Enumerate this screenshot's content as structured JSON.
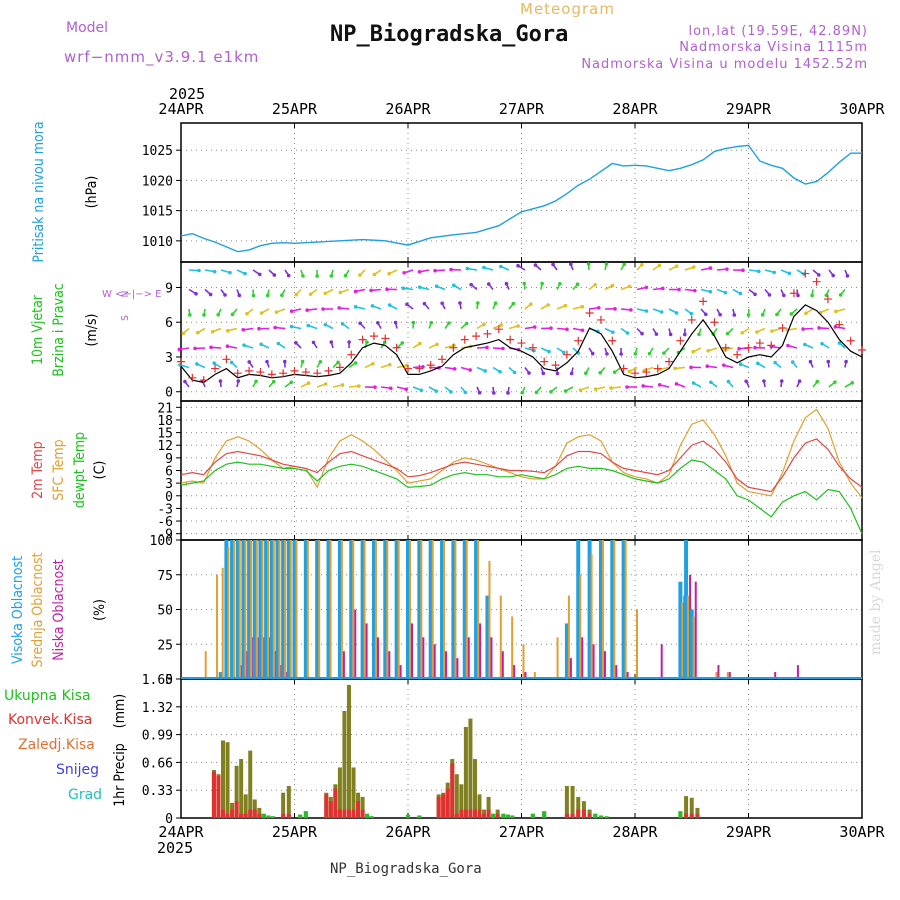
{
  "header": {
    "model_label": "Model",
    "model_name": "wrf−nmm_v3.9.1 e1km",
    "subtitle": "Meteogram",
    "title": "NP_Biogradska_Gora",
    "lonlat": "lon,lat (19.59E, 42.89N)",
    "altitude": "Nadmorska Visina 1115m",
    "altitude_model": "Nadmorska Visina u modelu 1452.52m"
  },
  "footer": {
    "station": "NP_Biogradska_Gora"
  },
  "credit": "made by Angel",
  "colors": {
    "pressure": "#1ea0e0",
    "wind_speed": "#000000",
    "gust": "#e03030",
    "t2m": "#e04848",
    "tsfc": "#e0a030",
    "tdew": "#20c020",
    "cl_high": "#20a0e0",
    "cl_mid": "#e0a030",
    "cl_low": "#c020a0",
    "precip_total": "#20c020",
    "precip_conv": "#e03030",
    "precip_strat": "#808020"
  },
  "chart_data": [
    {
      "type": "line",
      "panel": "pressure",
      "ylabel": [
        "Pritisak na nivou mora",
        "(hPa)"
      ],
      "x_axis": {
        "year": "2025",
        "ticks": [
          "24APR",
          "25APR",
          "26APR",
          "27APR",
          "28APR",
          "29APR",
          "30APR"
        ]
      },
      "ylim": [
        1006.5,
        1029.5
      ],
      "yticks": [
        1010,
        1015,
        1020,
        1025
      ],
      "x": [
        0,
        0.1,
        0.2,
        0.3,
        0.4,
        0.5,
        0.6,
        0.7,
        0.8,
        0.9,
        1.0,
        1.2,
        1.4,
        1.6,
        1.8,
        2.0,
        2.2,
        2.4,
        2.6,
        2.8,
        3.0,
        3.1,
        3.2,
        3.3,
        3.4,
        3.5,
        3.6,
        3.7,
        3.8,
        3.9,
        4.0,
        4.1,
        4.2,
        4.3,
        4.4,
        4.5,
        4.6,
        4.7,
        4.8,
        4.9,
        5.0,
        5.1,
        5.2,
        5.3,
        5.4,
        5.5,
        5.6,
        5.7,
        5.8,
        5.9,
        6.0
      ],
      "series": [
        {
          "values": [
            1010.8,
            1011.2,
            1010.4,
            1009.8,
            1009.0,
            1008.2,
            1008.5,
            1009.2,
            1009.6,
            1009.7,
            1009.6,
            1009.8,
            1010.0,
            1010.2,
            1010.0,
            1009.3,
            1010.5,
            1011.0,
            1011.4,
            1012.5,
            1014.8,
            1015.3,
            1015.8,
            1016.6,
            1017.8,
            1019.2,
            1020.2,
            1021.5,
            1022.8,
            1022.4,
            1022.5,
            1022.4,
            1022.0,
            1021.6,
            1022.0,
            1022.6,
            1023.4,
            1024.8,
            1025.3,
            1025.6,
            1025.8,
            1023.2,
            1022.5,
            1022.0,
            1020.4,
            1019.4,
            1019.8,
            1021.3,
            1023.0,
            1024.5,
            1024.5
          ]
        }
      ]
    },
    {
      "type": "line",
      "panel": "wind",
      "ylabel": [
        "10m Vjetar",
        "Brzina i Pravac",
        "(m/s)"
      ],
      "direction_key": [
        "N",
        "W <−|−> E",
        "S"
      ],
      "ylim": [
        -0.8,
        11.2
      ],
      "yticks": [
        0,
        3,
        6,
        9
      ],
      "x": [
        0,
        0.1,
        0.2,
        0.3,
        0.4,
        0.5,
        0.6,
        0.7,
        0.8,
        0.9,
        1.0,
        1.1,
        1.2,
        1.3,
        1.4,
        1.5,
        1.6,
        1.7,
        1.8,
        1.9,
        2.0,
        2.1,
        2.2,
        2.3,
        2.4,
        2.5,
        2.6,
        2.7,
        2.8,
        2.9,
        3.0,
        3.1,
        3.2,
        3.3,
        3.4,
        3.5,
        3.6,
        3.7,
        3.8,
        3.9,
        4.0,
        4.1,
        4.2,
        4.3,
        4.4,
        4.5,
        4.6,
        4.7,
        4.8,
        4.9,
        5.0,
        5.1,
        5.2,
        5.3,
        5.4,
        5.5,
        5.6,
        5.7,
        5.8,
        5.9,
        6.0
      ],
      "series": [
        {
          "values": [
            2.2,
            1.0,
            0.8,
            1.5,
            2.0,
            1.2,
            1.5,
            1.4,
            1.2,
            1.3,
            1.5,
            1.4,
            1.3,
            1.4,
            1.6,
            2.5,
            3.8,
            4.2,
            4.0,
            3.2,
            1.5,
            1.5,
            1.8,
            2.2,
            3.2,
            3.8,
            4.0,
            4.2,
            4.5,
            3.8,
            3.5,
            3.0,
            2.0,
            1.8,
            2.5,
            3.5,
            5.5,
            5.0,
            3.5,
            1.5,
            1.2,
            1.3,
            1.5,
            2.0,
            3.5,
            5.0,
            6.2,
            4.8,
            3.0,
            2.5,
            3.0,
            3.2,
            3.0,
            4.0,
            6.5,
            7.5,
            7.0,
            6.0,
            4.5,
            3.5,
            3.0
          ]
        },
        {
          "values": [
            2.6,
            1.2,
            1.0,
            2.0,
            2.8,
            1.6,
            1.8,
            1.7,
            1.5,
            1.6,
            1.8,
            1.7,
            1.6,
            1.8,
            2.1,
            3.2,
            4.5,
            4.8,
            4.6,
            3.8,
            2.0,
            2.0,
            2.3,
            2.8,
            3.8,
            4.5,
            4.8,
            5.0,
            5.4,
            4.5,
            4.2,
            3.8,
            2.6,
            2.3,
            3.2,
            4.4,
            6.8,
            6.2,
            4.4,
            2.0,
            1.6,
            1.7,
            2.0,
            2.6,
            4.4,
            6.2,
            7.8,
            6.0,
            3.8,
            3.2,
            3.8,
            4.2,
            4.0,
            5.5,
            8.5,
            10.2,
            9.5,
            8.0,
            5.8,
            4.4,
            3.6
          ]
        }
      ]
    },
    {
      "type": "line",
      "panel": "temperature",
      "ylabel": [
        "2m Temp",
        "SFC Temp",
        "dewpt Temp",
        "(C)"
      ],
      "ylim": [
        -10.5,
        22.5
      ],
      "yticks": [
        -9,
        -6,
        -3,
        0,
        3,
        6,
        9,
        12,
        15,
        18,
        21
      ],
      "x": [
        0,
        0.1,
        0.2,
        0.3,
        0.4,
        0.5,
        0.6,
        0.7,
        0.8,
        0.9,
        1.0,
        1.1,
        1.2,
        1.3,
        1.4,
        1.5,
        1.6,
        1.7,
        1.8,
        1.9,
        2.0,
        2.1,
        2.2,
        2.3,
        2.4,
        2.5,
        2.6,
        2.7,
        2.8,
        2.9,
        3.0,
        3.1,
        3.2,
        3.3,
        3.4,
        3.5,
        3.6,
        3.7,
        3.8,
        3.9,
        4.0,
        4.1,
        4.2,
        4.3,
        4.4,
        4.5,
        4.6,
        4.7,
        4.8,
        4.9,
        5.0,
        5.1,
        5.2,
        5.3,
        5.4,
        5.5,
        5.6,
        5.7,
        5.8,
        5.9,
        6.0
      ],
      "series": [
        {
          "name": "2m Temp",
          "values": [
            5,
            5.5,
            5,
            8,
            10,
            10.5,
            10,
            9.5,
            8.5,
            7.5,
            7.0,
            6.5,
            5.5,
            8,
            10,
            10.5,
            9.5,
            8.5,
            7.5,
            6.5,
            4.5,
            4.8,
            5.5,
            6.5,
            7.5,
            8,
            7.5,
            7,
            6.5,
            6,
            6.0,
            5.8,
            5.5,
            7,
            9.5,
            10.5,
            10.5,
            10,
            8,
            6.5,
            6.0,
            5.5,
            5,
            6,
            9,
            12,
            13,
            11,
            8,
            4,
            2,
            1.5,
            1,
            4.5,
            9,
            12.5,
            13.5,
            11,
            7,
            4,
            2
          ]
        },
        {
          "name": "SFC Temp",
          "values": [
            3,
            3.5,
            3,
            9,
            13,
            14,
            13,
            11,
            8.5,
            6.5,
            7.0,
            6.5,
            2,
            9,
            13,
            14.5,
            13,
            11,
            8.5,
            6,
            3,
            3.5,
            4,
            6,
            8,
            9,
            8.5,
            7.5,
            6.5,
            5.5,
            4.5,
            4,
            4,
            7,
            12.5,
            14,
            14.5,
            13,
            8,
            5.5,
            4.5,
            4,
            3,
            5,
            12,
            17,
            18,
            14.5,
            9.5,
            3,
            1,
            0.5,
            0,
            5.5,
            13,
            18.5,
            20.5,
            16,
            8,
            3,
            -0.5
          ]
        },
        {
          "name": "dewpt Temp",
          "values": [
            2.5,
            3,
            3.5,
            6,
            7.5,
            8,
            7.5,
            7.5,
            7,
            6.5,
            6.5,
            6,
            3.5,
            6,
            7,
            7.5,
            7,
            6,
            5,
            4,
            2,
            2.2,
            2.5,
            4,
            5,
            5.5,
            5,
            5,
            4.5,
            4.5,
            5,
            4.5,
            4,
            5,
            6.5,
            7,
            6.5,
            6.5,
            6,
            5,
            4,
            3.5,
            3,
            4,
            6.5,
            8.5,
            8,
            6,
            4,
            0,
            -1,
            -3,
            -5,
            -1.5,
            0,
            1,
            -1,
            1.5,
            1,
            -3,
            -9
          ]
        }
      ]
    },
    {
      "type": "bar",
      "panel": "clouds",
      "ylabel": [
        "Visoka Oblacnost",
        "Srednja Oblacnost",
        "Niska Oblacnost",
        "(%)"
      ],
      "ylim": [
        0,
        100
      ],
      "yticks": [
        0,
        25,
        50,
        75,
        100
      ],
      "x": [
        0.2,
        0.3,
        0.35,
        0.4,
        0.45,
        0.5,
        0.55,
        0.6,
        0.65,
        0.7,
        0.75,
        0.8,
        0.85,
        0.9,
        0.95,
        1.0,
        1.1,
        1.2,
        1.3,
        1.4,
        1.5,
        1.6,
        1.7,
        1.8,
        1.9,
        2.0,
        2.1,
        2.2,
        2.3,
        2.4,
        2.5,
        2.6,
        2.7,
        2.8,
        2.9,
        3.0,
        3.1,
        3.2,
        3.3,
        3.4,
        3.5,
        3.6,
        3.7,
        3.8,
        3.9,
        4.0,
        4.2,
        4.4,
        4.45,
        4.5,
        4.7,
        4.8,
        5.2,
        5.4
      ],
      "series": [
        {
          "name": "Visoka Oblacnost",
          "values": [
            0,
            0,
            5,
            100,
            100,
            100,
            100,
            100,
            100,
            100,
            100,
            100,
            100,
            100,
            100,
            100,
            100,
            100,
            100,
            100,
            100,
            100,
            100,
            100,
            100,
            100,
            100,
            100,
            100,
            100,
            100,
            100,
            60,
            0,
            0,
            0,
            0,
            0,
            0,
            40,
            100,
            100,
            100,
            100,
            100,
            0,
            0,
            70,
            100,
            50,
            0,
            0,
            0,
            0
          ]
        },
        {
          "name": "Srednja Oblacnost",
          "values": [
            20,
            75,
            80,
            95,
            100,
            100,
            100,
            100,
            100,
            100,
            100,
            100,
            100,
            100,
            100,
            100,
            100,
            100,
            100,
            100,
            100,
            100,
            100,
            100,
            100,
            100,
            100,
            100,
            100,
            100,
            100,
            100,
            85,
            60,
            45,
            25,
            5,
            0,
            30,
            60,
            75,
            90,
            100,
            100,
            100,
            50,
            0,
            55,
            60,
            45,
            5,
            5,
            0,
            0
          ]
        },
        {
          "name": "Niska Oblacnost",
          "values": [
            0,
            0,
            0,
            0,
            0,
            10,
            20,
            30,
            30,
            30,
            30,
            20,
            10,
            5,
            0,
            0,
            0,
            0,
            0,
            20,
            50,
            40,
            30,
            20,
            10,
            40,
            30,
            25,
            20,
            15,
            30,
            40,
            30,
            20,
            10,
            5,
            0,
            0,
            0,
            15,
            30,
            25,
            20,
            10,
            5,
            0,
            25,
            60,
            75,
            70,
            10,
            5,
            5,
            10
          ]
        }
      ]
    },
    {
      "type": "bar",
      "panel": "precip",
      "ylabel": [
        "1hr Precip",
        "(mm)"
      ],
      "legend": [
        "Ukupna Kisa",
        "Konvek.Kisa",
        "Zaledj.Kisa",
        "Snijeg",
        "Grad"
      ],
      "x_axis": {
        "year": "2025",
        "ticks": [
          "24APR",
          "25APR",
          "26APR",
          "27APR",
          "28APR",
          "29APR",
          "30APR"
        ]
      },
      "ylim": [
        0,
        1.65
      ],
      "yticks": [
        0,
        0.33,
        0.66,
        0.99,
        1.32,
        1.65
      ],
      "x": [
        0.29,
        0.33,
        0.37,
        0.41,
        0.45,
        0.49,
        0.53,
        0.57,
        0.61,
        0.65,
        0.69,
        0.73,
        0.77,
        0.81,
        0.9,
        0.95,
        1.05,
        1.1,
        1.28,
        1.32,
        1.36,
        1.4,
        1.44,
        1.48,
        1.52,
        1.56,
        1.6,
        1.64,
        1.68,
        2.0,
        2.1,
        2.27,
        2.31,
        2.35,
        2.39,
        2.43,
        2.47,
        2.51,
        2.55,
        2.59,
        2.63,
        2.67,
        2.71,
        2.75,
        2.79,
        2.84,
        2.88,
        2.92,
        3.1,
        3.2,
        3.4,
        3.45,
        3.5,
        3.55,
        3.6,
        3.65,
        3.7,
        3.75,
        4.4,
        4.45,
        4.5,
        4.55
      ],
      "series": [
        {
          "name": "Ukupna Kisa",
          "values": [
            0.57,
            0.52,
            0.92,
            0.9,
            0.18,
            0.62,
            0.7,
            0.28,
            0.8,
            0.22,
            0.12,
            0.05,
            0.03,
            0.02,
            0.3,
            0.38,
            0.04,
            0.08,
            0.3,
            0.25,
            0.4,
            0.6,
            1.27,
            1.58,
            0.6,
            0.3,
            0.25,
            0.05,
            0.02,
            0.04,
            0.03,
            0.28,
            0.3,
            0.42,
            0.7,
            0.52,
            0.4,
            1.08,
            1.18,
            0.7,
            0.28,
            0.1,
            0.25,
            0.05,
            0.1,
            0.05,
            0.04,
            0.03,
            0.05,
            0.08,
            0.38,
            0.38,
            0.25,
            0.2,
            0.1,
            0.05,
            0.03,
            0.02,
            0.08,
            0.26,
            0.24,
            0.12
          ]
        },
        {
          "name": "Konvek.Kisa",
          "values": [
            0.55,
            0.5,
            0.1,
            0.05,
            0.1,
            0.2,
            0.05,
            0.05,
            0.1,
            0.1,
            0.05,
            0.03,
            0.01,
            0.01,
            0.05,
            0.05,
            0,
            0,
            0.28,
            0.2,
            0.35,
            0.1,
            0.1,
            0.1,
            0.1,
            0.2,
            0.1,
            0.02,
            0,
            0,
            0,
            0.25,
            0.28,
            0.35,
            0.65,
            0.05,
            0.1,
            0.1,
            0.1,
            0.1,
            0.1,
            0.05,
            0.1,
            0.02,
            0.05,
            0.02,
            0.01,
            0.01,
            0,
            0,
            0.05,
            0.05,
            0.1,
            0.1,
            0.05,
            0.02,
            0.01,
            0,
            0,
            0.05,
            0.05,
            0.05
          ]
        }
      ]
    }
  ]
}
